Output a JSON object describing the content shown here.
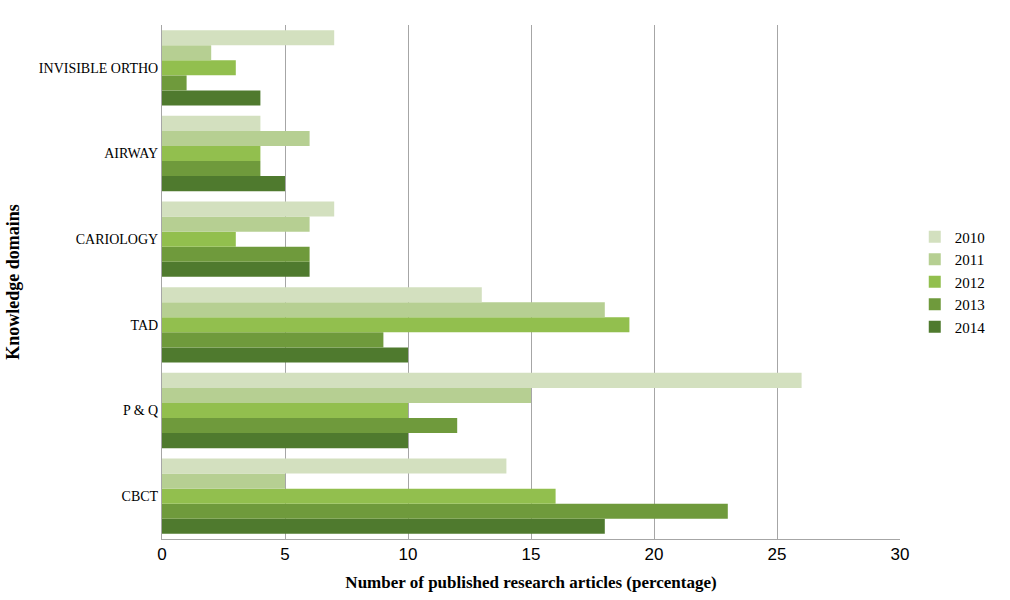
{
  "chart_data": {
    "type": "bar",
    "orientation": "horizontal",
    "x_label": "Number of published research articles (percentage)",
    "y_label": "Knowledge domains",
    "categories": [
      "CBCT",
      "P & Q",
      "TAD",
      "CARIOLOGY",
      "AIRWAY",
      "INVISIBLE ORTHO"
    ],
    "series": [
      {
        "name": "2010",
        "color": "#d3e0bf",
        "values": [
          14,
          26,
          13,
          7,
          4,
          7
        ]
      },
      {
        "name": "2011",
        "color": "#b6cf92",
        "values": [
          5,
          15,
          18,
          6,
          6,
          2
        ]
      },
      {
        "name": "2012",
        "color": "#92bf4e",
        "values": [
          16,
          10,
          19,
          3,
          4,
          3
        ]
      },
      {
        "name": "2013",
        "color": "#6f9a3c",
        "values": [
          23,
          12,
          9,
          6,
          4,
          1
        ]
      },
      {
        "name": "2014",
        "color": "#4f7a2e",
        "values": [
          18,
          10,
          10,
          6,
          5,
          4
        ]
      }
    ],
    "xlim": [
      0,
      30
    ],
    "xticks": [
      0,
      5,
      10,
      15,
      20,
      25,
      30
    ],
    "grid": true,
    "legend": "right"
  }
}
